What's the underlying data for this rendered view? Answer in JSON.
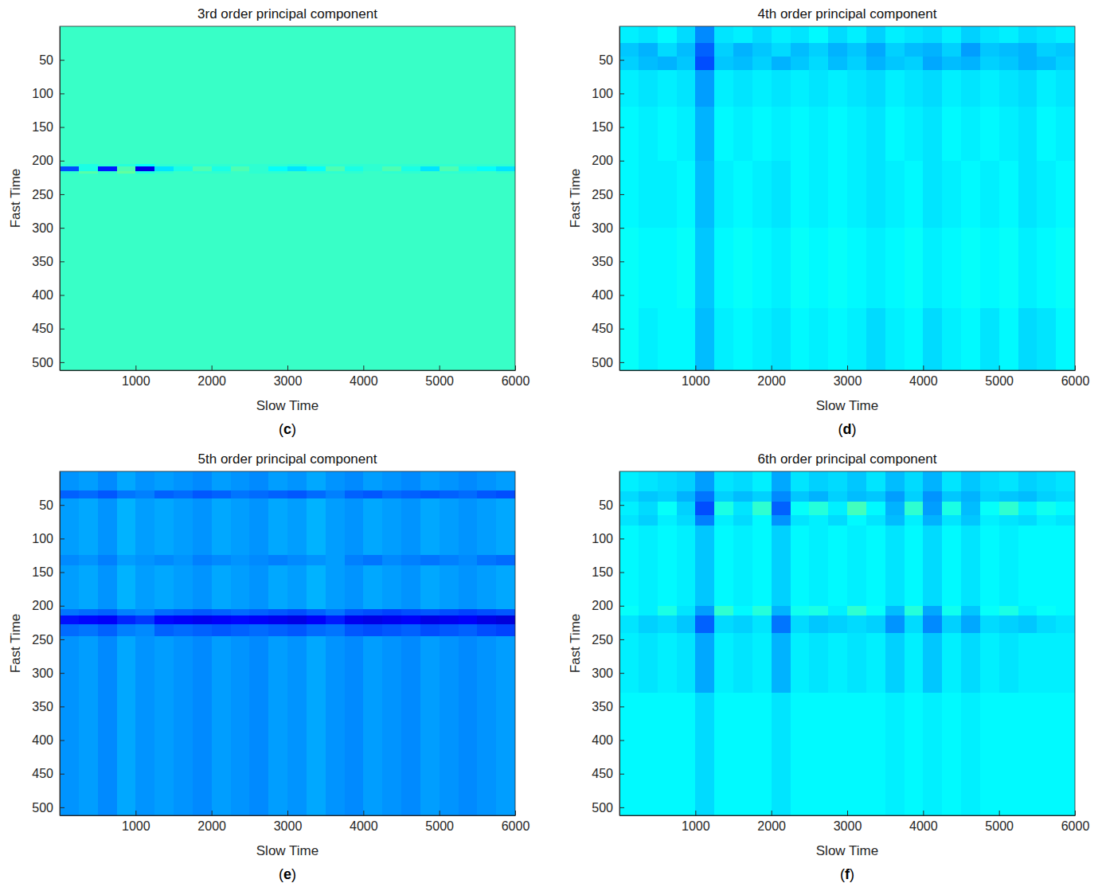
{
  "chart_data": [
    {
      "type": "heatmap",
      "title": "3rd order principal component",
      "panel_label": "(c)",
      "x_label": "Slow Time",
      "y_label": "Fast Time",
      "xlim": [
        0,
        6000
      ],
      "ylim": [
        0,
        512
      ],
      "xticks": [
        1000,
        2000,
        3000,
        4000,
        5000,
        6000
      ],
      "yticks": [
        50,
        100,
        150,
        200,
        250,
        300,
        350,
        400,
        450,
        500
      ],
      "zlim": [
        0,
        1
      ],
      "x": [
        0,
        250,
        500,
        750,
        1000,
        1250,
        1500,
        1750,
        2000,
        2250,
        2500,
        2750,
        3000,
        3250,
        3500,
        3750,
        4000,
        4250,
        4500,
        4750,
        5000,
        5250,
        5500,
        5750,
        6000
      ],
      "y": [
        0,
        205,
        208,
        216,
        219,
        512
      ],
      "z": [
        [
          0.43,
          0.43,
          0.43,
          0.43,
          0.43,
          0.43,
          0.43,
          0.43,
          0.43,
          0.43,
          0.43,
          0.43,
          0.43,
          0.43,
          0.43,
          0.43,
          0.43,
          0.43,
          0.43,
          0.43,
          0.43,
          0.43,
          0.43,
          0.43
        ],
        [
          0.42,
          0.4,
          0.42,
          0.41,
          0.38,
          0.42,
          0.42,
          0.42,
          0.42,
          0.42,
          0.42,
          0.42,
          0.41,
          0.42,
          0.42,
          0.42,
          0.42,
          0.42,
          0.42,
          0.42,
          0.42,
          0.42,
          0.42,
          0.42
        ],
        [
          0.2,
          0.4,
          0.15,
          0.45,
          0.1,
          0.35,
          0.4,
          0.45,
          0.4,
          0.45,
          0.42,
          0.38,
          0.35,
          0.38,
          0.45,
          0.4,
          0.42,
          0.45,
          0.4,
          0.35,
          0.45,
          0.4,
          0.38,
          0.35
        ],
        [
          0.42,
          0.46,
          0.42,
          0.47,
          0.4,
          0.42,
          0.43,
          0.42,
          0.42,
          0.43,
          0.42,
          0.42,
          0.43,
          0.42,
          0.42,
          0.42,
          0.43,
          0.42,
          0.42,
          0.43,
          0.42,
          0.42,
          0.43,
          0.42
        ],
        [
          0.43,
          0.43,
          0.43,
          0.43,
          0.43,
          0.43,
          0.43,
          0.43,
          0.43,
          0.43,
          0.43,
          0.43,
          0.43,
          0.43,
          0.43,
          0.43,
          0.43,
          0.43,
          0.43,
          0.43,
          0.43,
          0.43,
          0.43,
          0.43
        ]
      ]
    },
    {
      "type": "heatmap",
      "title": "4th order principal component",
      "panel_label": "(d)",
      "x_label": "Slow Time",
      "y_label": "Fast Time",
      "xlim": [
        0,
        6000
      ],
      "ylim": [
        0,
        512
      ],
      "xticks": [
        1000,
        2000,
        3000,
        4000,
        5000,
        6000
      ],
      "yticks": [
        50,
        100,
        150,
        200,
        250,
        300,
        350,
        400,
        450,
        500
      ],
      "zlim": [
        0,
        1
      ],
      "x": [
        0,
        250,
        500,
        750,
        1000,
        1250,
        1500,
        1750,
        2000,
        2250,
        2500,
        2750,
        3000,
        3250,
        3500,
        3750,
        4000,
        4250,
        4500,
        4750,
        5000,
        5250,
        5500,
        5750,
        6000
      ],
      "y": [
        0,
        25,
        45,
        65,
        120,
        200,
        300,
        420,
        512
      ],
      "z": [
        [
          0.36,
          0.35,
          0.37,
          0.34,
          0.26,
          0.35,
          0.36,
          0.34,
          0.36,
          0.35,
          0.37,
          0.34,
          0.36,
          0.33,
          0.36,
          0.35,
          0.34,
          0.36,
          0.33,
          0.35,
          0.36,
          0.34,
          0.35,
          0.36
        ],
        [
          0.32,
          0.3,
          0.34,
          0.31,
          0.22,
          0.33,
          0.3,
          0.32,
          0.34,
          0.31,
          0.33,
          0.3,
          0.32,
          0.29,
          0.33,
          0.31,
          0.3,
          0.33,
          0.28,
          0.32,
          0.31,
          0.3,
          0.33,
          0.32
        ],
        [
          0.33,
          0.31,
          0.3,
          0.32,
          0.2,
          0.32,
          0.31,
          0.33,
          0.3,
          0.32,
          0.34,
          0.31,
          0.33,
          0.3,
          0.32,
          0.33,
          0.29,
          0.31,
          0.3,
          0.33,
          0.32,
          0.3,
          0.31,
          0.33
        ],
        [
          0.36,
          0.35,
          0.36,
          0.35,
          0.28,
          0.36,
          0.35,
          0.36,
          0.35,
          0.36,
          0.35,
          0.36,
          0.35,
          0.34,
          0.36,
          0.35,
          0.34,
          0.36,
          0.35,
          0.36,
          0.35,
          0.34,
          0.36,
          0.35
        ],
        [
          0.37,
          0.36,
          0.37,
          0.36,
          0.3,
          0.37,
          0.36,
          0.37,
          0.36,
          0.37,
          0.36,
          0.37,
          0.36,
          0.35,
          0.37,
          0.36,
          0.35,
          0.37,
          0.36,
          0.37,
          0.36,
          0.35,
          0.37,
          0.36
        ],
        [
          0.37,
          0.36,
          0.36,
          0.37,
          0.31,
          0.36,
          0.37,
          0.36,
          0.35,
          0.37,
          0.36,
          0.37,
          0.36,
          0.35,
          0.36,
          0.37,
          0.35,
          0.36,
          0.37,
          0.36,
          0.37,
          0.35,
          0.36,
          0.37
        ],
        [
          0.38,
          0.37,
          0.37,
          0.38,
          0.32,
          0.37,
          0.38,
          0.37,
          0.36,
          0.38,
          0.37,
          0.38,
          0.37,
          0.36,
          0.37,
          0.38,
          0.36,
          0.37,
          0.38,
          0.37,
          0.38,
          0.36,
          0.37,
          0.38
        ],
        [
          0.38,
          0.36,
          0.37,
          0.37,
          0.31,
          0.36,
          0.37,
          0.36,
          0.35,
          0.37,
          0.36,
          0.37,
          0.36,
          0.34,
          0.36,
          0.37,
          0.34,
          0.36,
          0.37,
          0.35,
          0.37,
          0.34,
          0.35,
          0.37
        ]
      ]
    },
    {
      "type": "heatmap",
      "title": "5th order principal component",
      "panel_label": "(e)",
      "x_label": "Slow Time",
      "y_label": "Fast Time",
      "xlim": [
        0,
        6000
      ],
      "ylim": [
        0,
        512
      ],
      "xticks": [
        1000,
        2000,
        3000,
        4000,
        5000,
        6000
      ],
      "yticks": [
        50,
        100,
        150,
        200,
        250,
        300,
        350,
        400,
        450,
        500
      ],
      "zlim": [
        0,
        1
      ],
      "x": [
        0,
        250,
        500,
        750,
        1000,
        1250,
        1500,
        1750,
        2000,
        2250,
        2500,
        2750,
        3000,
        3250,
        3500,
        3750,
        4000,
        4250,
        4500,
        4750,
        5000,
        5250,
        5500,
        5750,
        6000
      ],
      "y": [
        0,
        28,
        40,
        125,
        140,
        205,
        214,
        228,
        245,
        512
      ],
      "z": [
        [
          0.27,
          0.28,
          0.26,
          0.29,
          0.27,
          0.28,
          0.27,
          0.26,
          0.28,
          0.27,
          0.26,
          0.28,
          0.27,
          0.29,
          0.27,
          0.26,
          0.28,
          0.27,
          0.26,
          0.28,
          0.27,
          0.26,
          0.27,
          0.28
        ],
        [
          0.22,
          0.23,
          0.21,
          0.24,
          0.25,
          0.22,
          0.23,
          0.21,
          0.22,
          0.24,
          0.23,
          0.22,
          0.21,
          0.23,
          0.25,
          0.22,
          0.21,
          0.23,
          0.22,
          0.21,
          0.22,
          0.23,
          0.21,
          0.2
        ],
        [
          0.28,
          0.29,
          0.27,
          0.3,
          0.28,
          0.29,
          0.28,
          0.27,
          0.29,
          0.28,
          0.27,
          0.29,
          0.28,
          0.3,
          0.28,
          0.27,
          0.29,
          0.28,
          0.27,
          0.29,
          0.28,
          0.27,
          0.28,
          0.29
        ],
        [
          0.26,
          0.27,
          0.25,
          0.28,
          0.27,
          0.26,
          0.27,
          0.25,
          0.26,
          0.27,
          0.26,
          0.25,
          0.26,
          0.27,
          0.28,
          0.25,
          0.24,
          0.26,
          0.25,
          0.24,
          0.25,
          0.26,
          0.24,
          0.23
        ],
        [
          0.28,
          0.29,
          0.27,
          0.3,
          0.28,
          0.29,
          0.28,
          0.27,
          0.29,
          0.28,
          0.27,
          0.29,
          0.28,
          0.3,
          0.28,
          0.27,
          0.29,
          0.28,
          0.27,
          0.29,
          0.28,
          0.27,
          0.28,
          0.29
        ],
        [
          0.24,
          0.23,
          0.22,
          0.25,
          0.26,
          0.23,
          0.22,
          0.21,
          0.22,
          0.23,
          0.22,
          0.21,
          0.2,
          0.22,
          0.24,
          0.21,
          0.2,
          0.19,
          0.2,
          0.21,
          0.2,
          0.19,
          0.2,
          0.21
        ],
        [
          0.14,
          0.13,
          0.12,
          0.16,
          0.18,
          0.13,
          0.12,
          0.11,
          0.12,
          0.13,
          0.12,
          0.11,
          0.1,
          0.12,
          0.15,
          0.11,
          0.1,
          0.11,
          0.12,
          0.1,
          0.11,
          0.12,
          0.1,
          0.09
        ],
        [
          0.23,
          0.24,
          0.22,
          0.25,
          0.26,
          0.22,
          0.23,
          0.22,
          0.21,
          0.22,
          0.23,
          0.22,
          0.21,
          0.23,
          0.24,
          0.21,
          0.2,
          0.21,
          0.22,
          0.2,
          0.21,
          0.22,
          0.2,
          0.19
        ],
        [
          0.27,
          0.28,
          0.26,
          0.29,
          0.27,
          0.28,
          0.27,
          0.26,
          0.28,
          0.27,
          0.26,
          0.28,
          0.27,
          0.29,
          0.27,
          0.26,
          0.28,
          0.27,
          0.26,
          0.28,
          0.27,
          0.26,
          0.27,
          0.28
        ]
      ]
    },
    {
      "type": "heatmap",
      "title": "6th order principal component",
      "panel_label": "(f)",
      "x_label": "Slow Time",
      "y_label": "Fast Time",
      "xlim": [
        0,
        6000
      ],
      "ylim": [
        0,
        512
      ],
      "xticks": [
        1000,
        2000,
        3000,
        4000,
        5000,
        6000
      ],
      "yticks": [
        50,
        100,
        150,
        200,
        250,
        300,
        350,
        400,
        450,
        500
      ],
      "zlim": [
        0,
        1
      ],
      "x": [
        0,
        250,
        500,
        750,
        1000,
        1250,
        1500,
        1750,
        2000,
        2250,
        2500,
        2750,
        3000,
        3250,
        3500,
        3750,
        4000,
        4250,
        4500,
        4750,
        5000,
        5250,
        5500,
        5750,
        6000
      ],
      "y": [
        0,
        30,
        45,
        65,
        80,
        200,
        215,
        240,
        330,
        512
      ],
      "z": [
        [
          0.36,
          0.35,
          0.34,
          0.33,
          0.28,
          0.35,
          0.34,
          0.36,
          0.29,
          0.35,
          0.33,
          0.34,
          0.32,
          0.35,
          0.31,
          0.34,
          0.3,
          0.35,
          0.32,
          0.34,
          0.35,
          0.33,
          0.34,
          0.35
        ],
        [
          0.34,
          0.32,
          0.33,
          0.3,
          0.24,
          0.33,
          0.31,
          0.33,
          0.26,
          0.32,
          0.3,
          0.33,
          0.31,
          0.32,
          0.28,
          0.33,
          0.27,
          0.32,
          0.3,
          0.33,
          0.32,
          0.31,
          0.33,
          0.34
        ],
        [
          0.36,
          0.34,
          0.38,
          0.33,
          0.2,
          0.4,
          0.35,
          0.42,
          0.22,
          0.38,
          0.41,
          0.36,
          0.44,
          0.37,
          0.3,
          0.42,
          0.28,
          0.4,
          0.31,
          0.38,
          0.42,
          0.36,
          0.39,
          0.37
        ],
        [
          0.35,
          0.33,
          0.36,
          0.34,
          0.25,
          0.36,
          0.34,
          0.37,
          0.27,
          0.35,
          0.36,
          0.34,
          0.37,
          0.35,
          0.31,
          0.36,
          0.3,
          0.35,
          0.32,
          0.36,
          0.35,
          0.34,
          0.36,
          0.35
        ],
        [
          0.37,
          0.36,
          0.37,
          0.36,
          0.32,
          0.37,
          0.36,
          0.37,
          0.33,
          0.37,
          0.36,
          0.37,
          0.36,
          0.37,
          0.35,
          0.37,
          0.34,
          0.37,
          0.35,
          0.37,
          0.36,
          0.37,
          0.37,
          0.37
        ],
        [
          0.38,
          0.36,
          0.4,
          0.35,
          0.28,
          0.42,
          0.37,
          0.41,
          0.3,
          0.39,
          0.4,
          0.36,
          0.42,
          0.38,
          0.31,
          0.41,
          0.29,
          0.39,
          0.32,
          0.38,
          0.4,
          0.36,
          0.38,
          0.37
        ],
        [
          0.35,
          0.33,
          0.34,
          0.32,
          0.22,
          0.34,
          0.33,
          0.35,
          0.24,
          0.34,
          0.32,
          0.33,
          0.34,
          0.33,
          0.27,
          0.34,
          0.26,
          0.33,
          0.29,
          0.34,
          0.33,
          0.32,
          0.34,
          0.35
        ],
        [
          0.36,
          0.35,
          0.36,
          0.35,
          0.29,
          0.36,
          0.35,
          0.36,
          0.3,
          0.36,
          0.35,
          0.36,
          0.35,
          0.36,
          0.33,
          0.36,
          0.32,
          0.36,
          0.34,
          0.36,
          0.35,
          0.36,
          0.36,
          0.36
        ],
        [
          0.37,
          0.37,
          0.37,
          0.37,
          0.34,
          0.37,
          0.37,
          0.37,
          0.35,
          0.37,
          0.37,
          0.37,
          0.37,
          0.37,
          0.36,
          0.37,
          0.36,
          0.37,
          0.36,
          0.37,
          0.37,
          0.37,
          0.37,
          0.37
        ]
      ]
    }
  ]
}
